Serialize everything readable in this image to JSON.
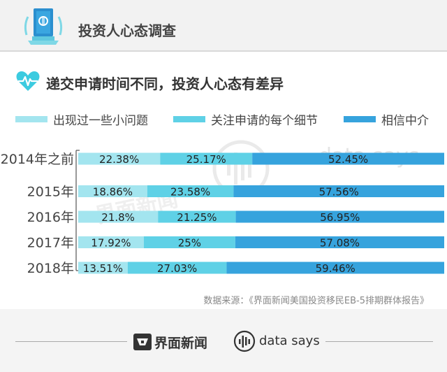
{
  "header": {
    "title": "投资人心态调查"
  },
  "subtitle": "递交申请时间不同，投资人心态有差异",
  "legend": [
    {
      "label": "出现过一些小问题",
      "color": "#a3e5ef"
    },
    {
      "label": "关注申请的每个细节",
      "color": "#5fd1e6"
    },
    {
      "label": "相信中介",
      "color": "#36a3dd"
    }
  ],
  "chart_data": {
    "type": "bar",
    "orientation": "horizontal",
    "stacked": true,
    "categories": [
      "2014年之前",
      "2015年",
      "2016年",
      "2017年",
      "2018年"
    ],
    "series": [
      {
        "name": "出现过一些小问题",
        "color": "#a3e5ef",
        "values": [
          22.38,
          18.86,
          21.8,
          17.92,
          13.51
        ],
        "labels": [
          "22.38%",
          "18.86%",
          "21.8%",
          "17.92%",
          "13.51%"
        ]
      },
      {
        "name": "关注申请的每个细节",
        "color": "#5fd1e6",
        "values": [
          25.17,
          23.58,
          21.25,
          25,
          27.03
        ],
        "labels": [
          "25.17%",
          "23.58%",
          "21.25%",
          "25%",
          "27.03%"
        ]
      },
      {
        "name": "相信中介",
        "color": "#36a3dd",
        "values": [
          52.45,
          57.56,
          56.95,
          57.08,
          59.46
        ],
        "labels": [
          "52.45%",
          "57.56%",
          "56.95%",
          "57.08%",
          "59.46%"
        ]
      }
    ],
    "xlim": [
      0,
      100
    ],
    "grid": false,
    "legend_position": "top"
  },
  "source": "数据来源：《界面新闻美国投资移民EB-5排期群体报告》",
  "footer": {
    "brand": "界面新闻",
    "says": "data says"
  },
  "watermark": {
    "brand": "界面新闻",
    "says": "data says"
  },
  "colors": {
    "accent": "#36a3dd",
    "heart": "#3ccbe0"
  }
}
